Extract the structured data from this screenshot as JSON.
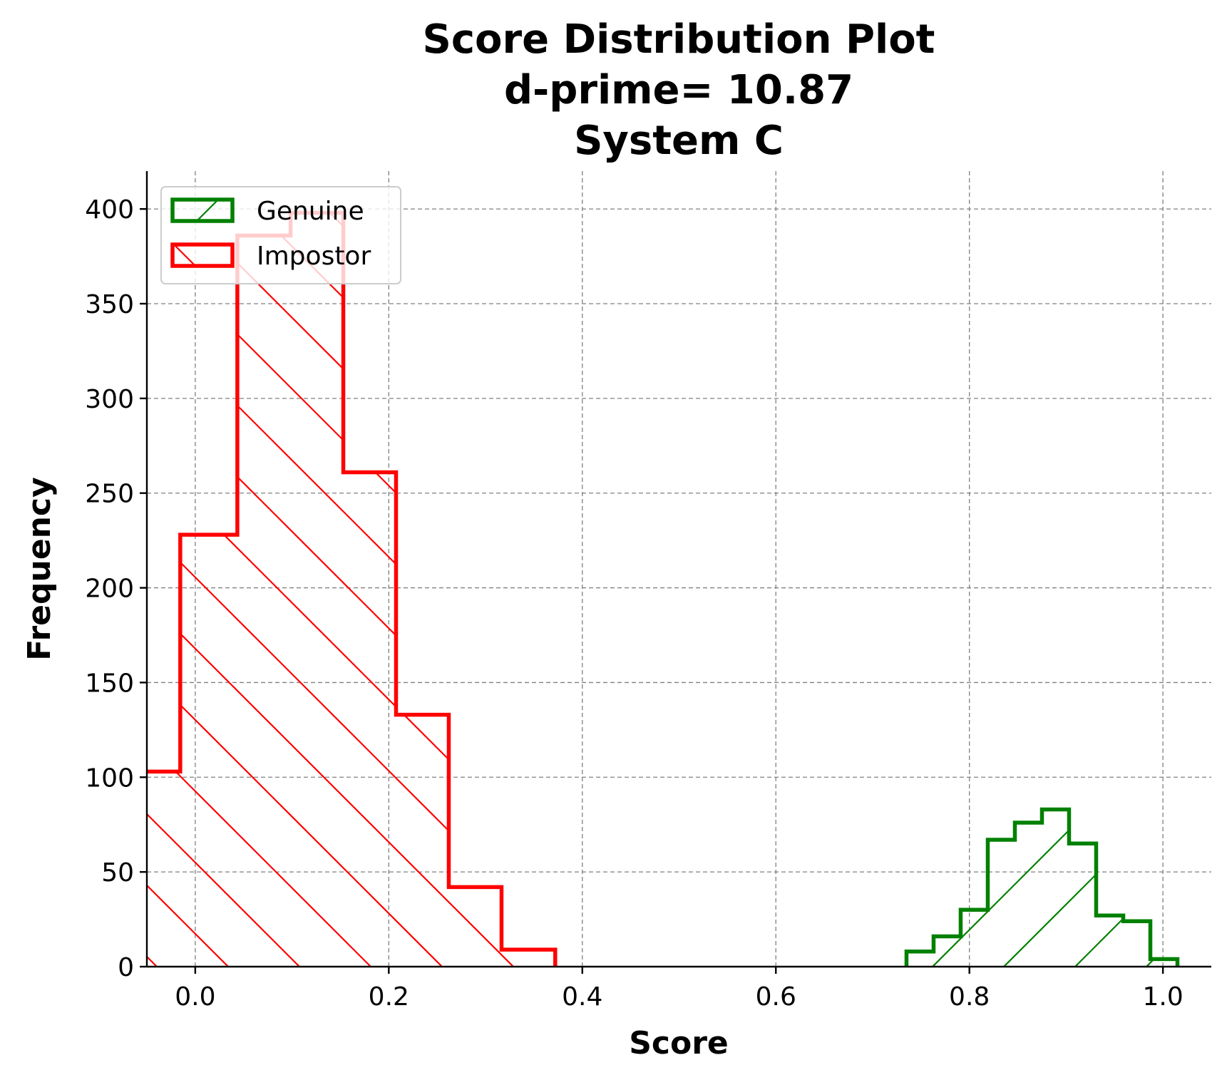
{
  "chart_data": {
    "type": "bar",
    "title_lines": [
      "Score Distribution Plot",
      "d-prime= 10.87",
      "System C"
    ],
    "xlabel": "Score",
    "ylabel": "Frequency",
    "xlim": [
      -0.05,
      1.05
    ],
    "ylim": [
      0,
      420
    ],
    "xticks": [
      0.0,
      0.2,
      0.4,
      0.6,
      0.8,
      1.0
    ],
    "xtick_labels": [
      "0.0",
      "0.2",
      "0.4",
      "0.6",
      "0.8",
      "1.0"
    ],
    "yticks": [
      0,
      50,
      100,
      150,
      200,
      250,
      300,
      350,
      400
    ],
    "ytick_labels": [
      "0",
      "50",
      "100",
      "150",
      "200",
      "250",
      "300",
      "350",
      "400"
    ],
    "grid": true,
    "legend_position": "top-left",
    "series": [
      {
        "name": "Genuine",
        "color": "#008000",
        "hatch": "forward-diagonal",
        "bin_edges": [
          0.735,
          0.763,
          0.791,
          0.819,
          0.847,
          0.875,
          0.903,
          0.931,
          0.959,
          0.987,
          1.015
        ],
        "counts": [
          8,
          16,
          30,
          67,
          76,
          83,
          65,
          27,
          24,
          4
        ]
      },
      {
        "name": "Impostor",
        "color": "#ff0000",
        "hatch": "back-diagonal",
        "bin_edges": [
          -0.07,
          -0.0155,
          0.0435,
          0.0985,
          0.153,
          0.2075,
          0.262,
          0.3165,
          0.372
        ],
        "counts": [
          103,
          228,
          386,
          398,
          261,
          133,
          42,
          9
        ]
      }
    ]
  }
}
